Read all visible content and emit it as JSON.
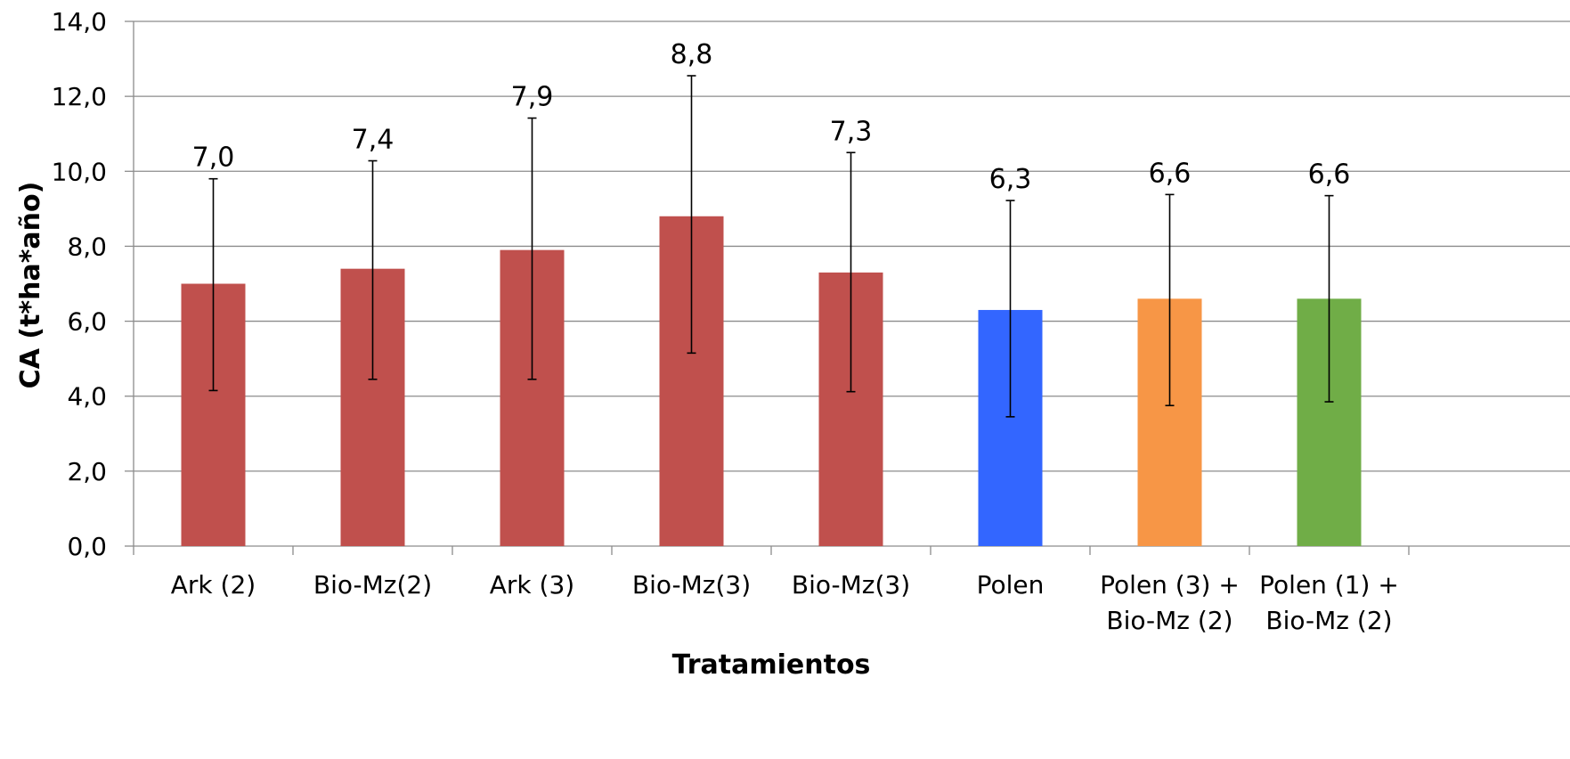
{
  "chart_data": {
    "type": "bar",
    "title": "",
    "xlabel": "Tratamientos",
    "ylabel": "CA (t*ha*año)",
    "ylim": [
      0,
      14
    ],
    "yticks": [
      "0,0",
      "2,0",
      "4,0",
      "6,0",
      "8,0",
      "10,0",
      "12,0",
      "14,0"
    ],
    "grid": true,
    "legend": "none",
    "categories": [
      [
        "Ark (2)"
      ],
      [
        "Bio-Mz(2)"
      ],
      [
        "Ark (3)"
      ],
      [
        "Bio-Mz(3)"
      ],
      [
        "Bio-Mz(3)"
      ],
      [
        "Polen"
      ],
      [
        "Polen (3) +",
        "Bio-Mz (2)"
      ],
      [
        "Polen (1) +",
        "Bio-Mz (2)"
      ]
    ],
    "values": [
      7.0,
      7.4,
      7.9,
      8.8,
      7.3,
      6.3,
      6.6,
      6.6
    ],
    "data_labels": [
      "7,0",
      "7,4",
      "7,9",
      "8,8",
      "7,3",
      "6,3",
      "6,6",
      "6,6"
    ],
    "error_low": [
      4.15,
      4.45,
      4.45,
      5.15,
      4.12,
      3.45,
      3.75,
      3.85
    ],
    "error_high": [
      9.8,
      10.28,
      11.42,
      12.55,
      10.5,
      9.22,
      9.38,
      9.35
    ],
    "colors": [
      "#c0504d",
      "#c0504d",
      "#c0504d",
      "#c0504d",
      "#c0504d",
      "#3366ff",
      "#f79646",
      "#70ad47"
    ]
  }
}
